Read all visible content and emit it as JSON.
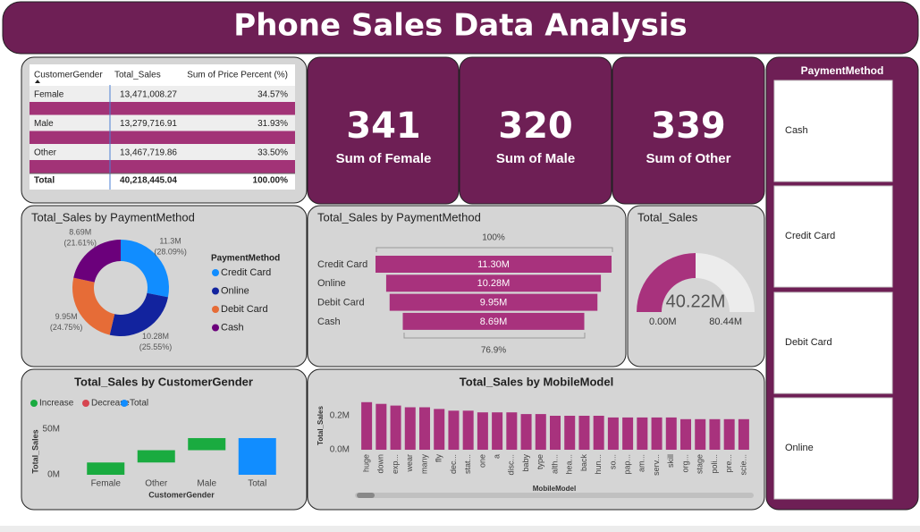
{
  "header": {
    "title": "Phone Sales Data Analysis"
  },
  "table": {
    "columns": [
      "CustomerGender",
      "Total_Sales",
      "Sum of Price Percent (%)"
    ],
    "rows": [
      [
        "Female",
        "13,471,008.27",
        "34.57%"
      ],
      [
        "Male",
        "13,279,716.91",
        "31.93%"
      ],
      [
        "Other",
        "13,467,719.86",
        "33.50%"
      ]
    ],
    "total": [
      "Total",
      "40,218,445.04",
      "100.00%"
    ]
  },
  "kpis": [
    {
      "value": "341",
      "label": "Sum of Female"
    },
    {
      "value": "320",
      "label": "Sum of Male"
    },
    {
      "value": "339",
      "label": "Sum of Other"
    }
  ],
  "slicer": {
    "title": "PaymentMethod",
    "items": [
      "Cash",
      "Credit Card",
      "Debit Card",
      "Online"
    ]
  },
  "chart_data": [
    {
      "type": "donut",
      "title": "Total_Sales by PaymentMethod",
      "legend_title": "PaymentMethod",
      "categories": [
        "Credit Card",
        "Online",
        "Debit Card",
        "Cash"
      ],
      "values": [
        11.3,
        10.28,
        9.95,
        8.69
      ],
      "value_labels": [
        "11.3M",
        "10.28M",
        "9.95M",
        "8.69M"
      ],
      "percent_labels": [
        "(28.09%)",
        "(25.55%)",
        "(24.75%)",
        "(21.61%)"
      ],
      "colors": [
        "#118dff",
        "#12239e",
        "#e66c37",
        "#6b007b"
      ]
    },
    {
      "type": "funnel",
      "title": "Total_Sales by PaymentMethod",
      "categories": [
        "Credit Card",
        "Online",
        "Debit Card",
        "Cash"
      ],
      "values": [
        11.3,
        10.28,
        9.95,
        8.69
      ],
      "value_labels": [
        "11.30M",
        "10.28M",
        "9.95M",
        "8.69M"
      ],
      "top_label": "100%",
      "bottom_label": "76.9%",
      "color": "#a8327d"
    },
    {
      "type": "gauge",
      "title": "Total_Sales",
      "values": [
        40.22
      ],
      "value_labels": [
        "40.22M"
      ],
      "ylim": [
        0,
        80.44
      ],
      "yticks": [
        {
          "value": 0,
          "label": "0.00M"
        },
        {
          "value": 80.44,
          "label": "80.44M"
        }
      ],
      "color": "#a8327d"
    },
    {
      "type": "waterfall",
      "title": "Total_Sales by CustomerGender",
      "legend": [
        {
          "name": "Increase",
          "color": "#1aab40"
        },
        {
          "name": "Decrease",
          "color": "#d64550"
        },
        {
          "name": "Total",
          "color": "#118dff"
        }
      ],
      "categories": [
        "Female",
        "Other",
        "Male",
        "Total"
      ],
      "values": [
        13.47,
        13.47,
        13.28,
        40.22
      ],
      "kinds": [
        "increase",
        "increase",
        "increase",
        "total"
      ],
      "ylim": [
        0,
        50
      ],
      "yticks": [
        {
          "value": 0,
          "label": "0M"
        },
        {
          "value": 50,
          "label": "50M"
        }
      ],
      "y_label": "Total_Sales",
      "x_label": "CustomerGender"
    },
    {
      "type": "bar",
      "title": "Total_Sales by MobileModel",
      "categories": [
        "huge",
        "down",
        "exp...",
        "wear",
        "many",
        "fly",
        "dec...",
        "stat...",
        "one",
        "a",
        "disc...",
        "baby",
        "type",
        "alth...",
        "hea...",
        "back",
        "hun...",
        "so...",
        "pap...",
        "am...",
        "serv...",
        "skill",
        "org...",
        "stage",
        "poli...",
        "pre...",
        "scie..."
      ],
      "values": [
        0.28,
        0.27,
        0.26,
        0.25,
        0.25,
        0.24,
        0.23,
        0.23,
        0.22,
        0.22,
        0.22,
        0.21,
        0.21,
        0.2,
        0.2,
        0.2,
        0.2,
        0.19,
        0.19,
        0.19,
        0.19,
        0.19,
        0.18,
        0.18,
        0.18,
        0.18,
        0.18
      ],
      "ylim": [
        0,
        0.3
      ],
      "yticks": [
        {
          "value": 0,
          "label": "0.0M"
        },
        {
          "value": 0.2,
          "label": "0.2M"
        }
      ],
      "y_label": "Total_Sales",
      "x_label": "MobileModel",
      "color": "#a8327d"
    }
  ]
}
